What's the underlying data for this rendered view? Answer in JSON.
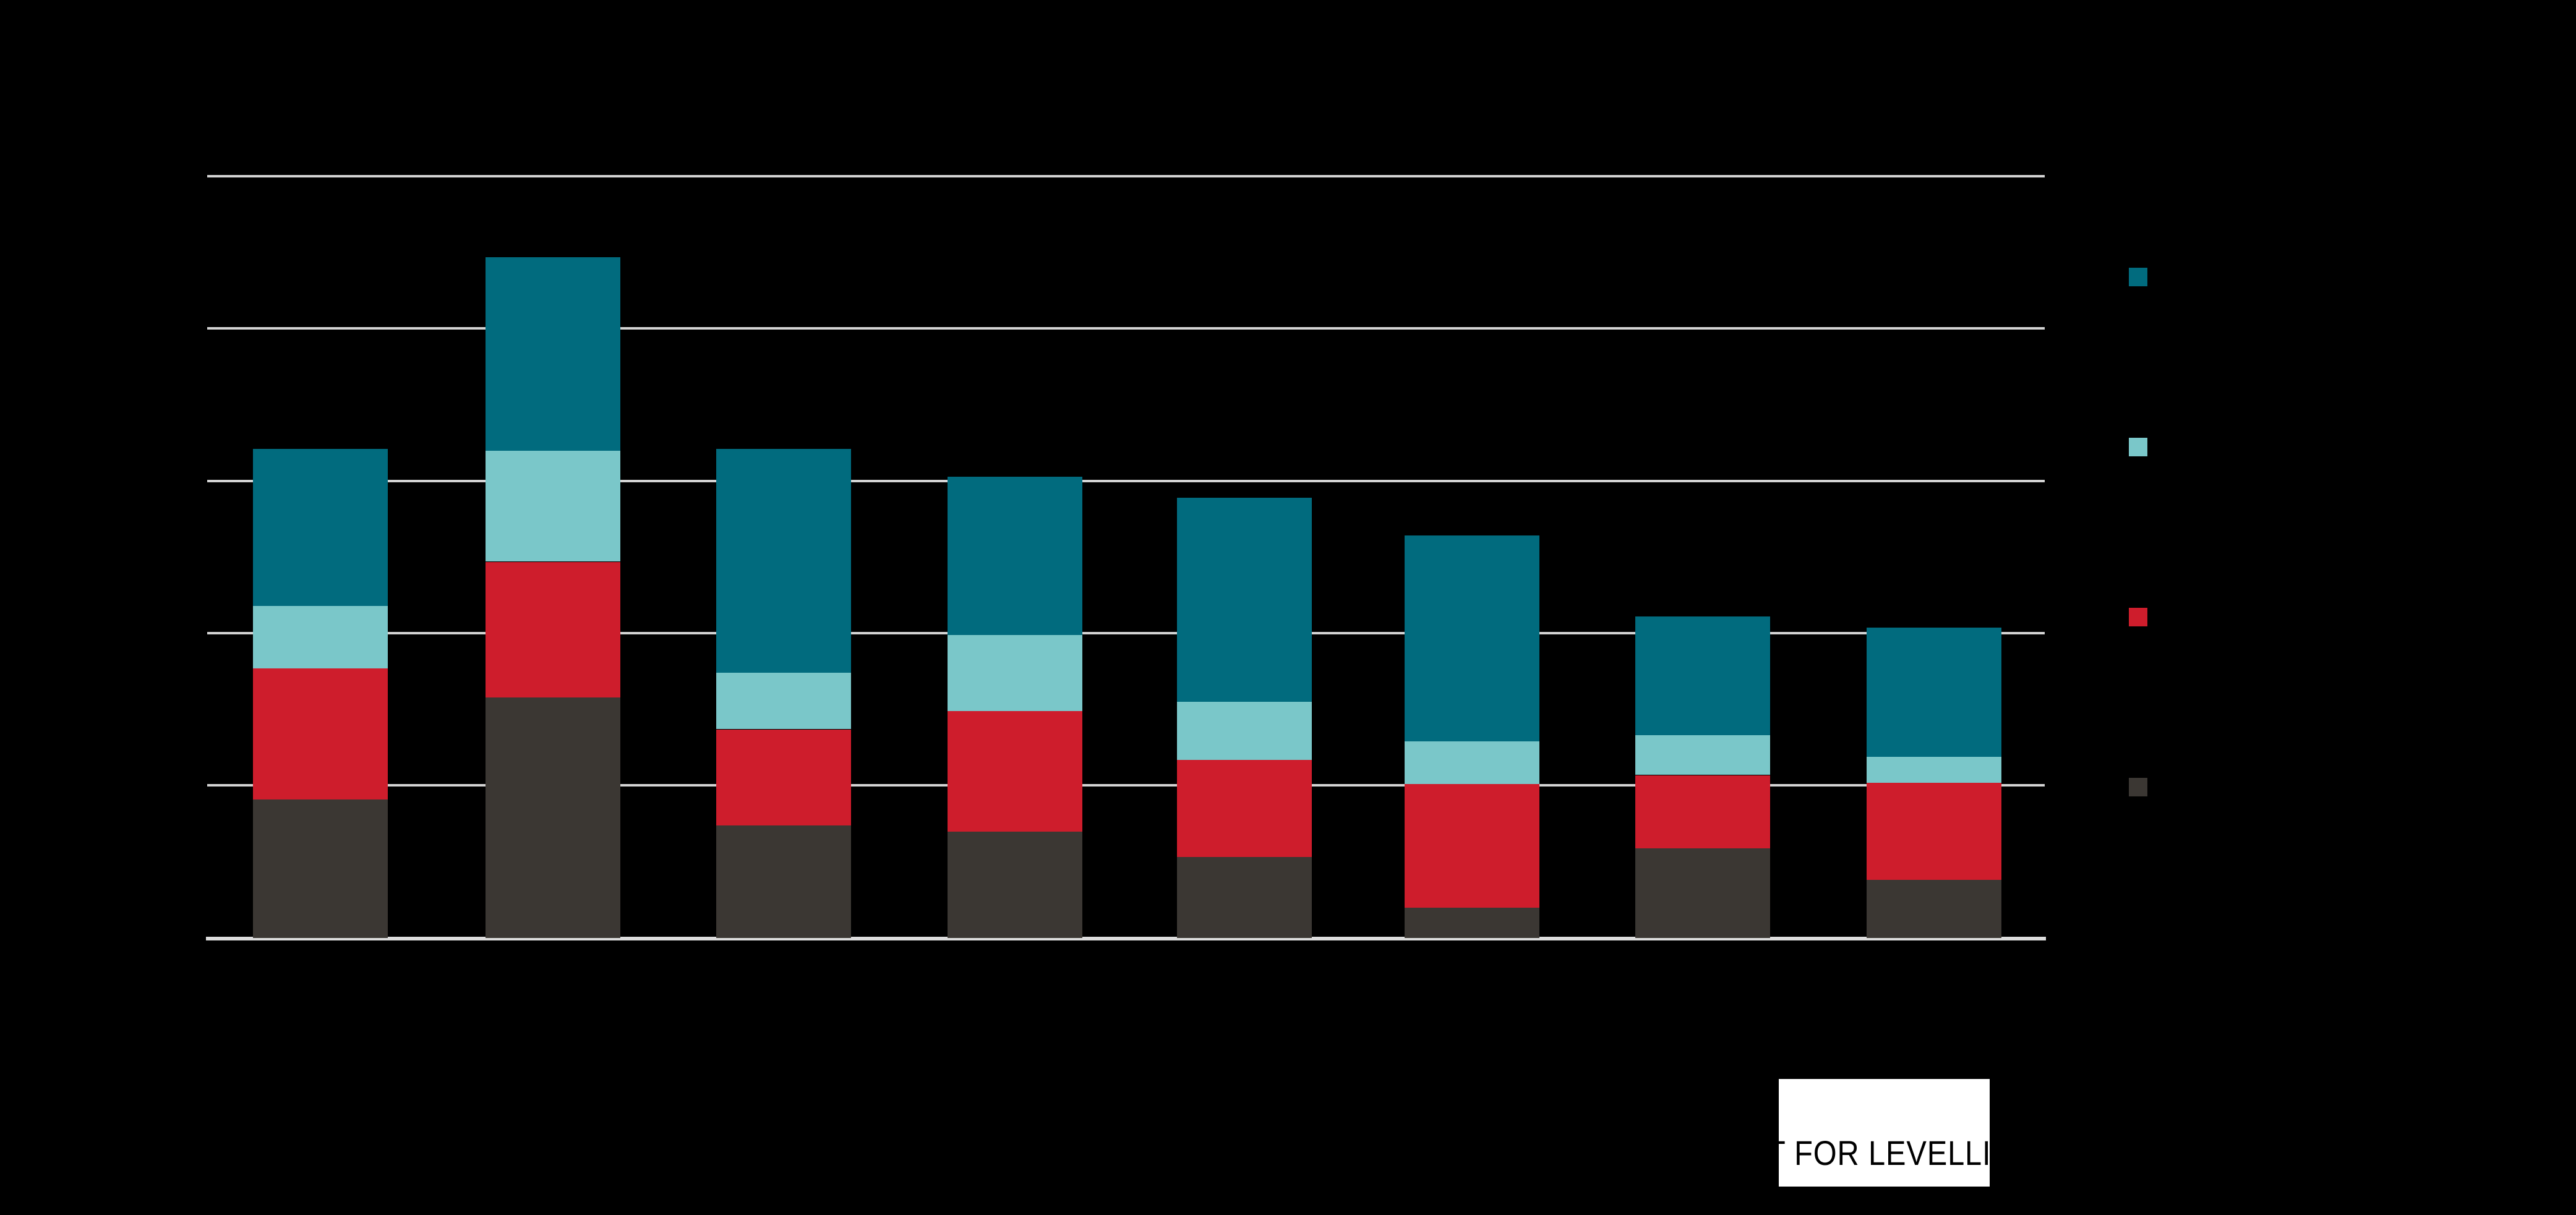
{
  "canvas": {
    "background": "#000000",
    "gridline_color": "#D4D4D4"
  },
  "chart_data": {
    "type": "bar",
    "stacked": true,
    "title": "",
    "xlabel": "",
    "ylabel": "",
    "categories": [
      "",
      "",
      "",
      "",
      "",
      "",
      "",
      ""
    ],
    "series": [
      {
        "name": "dark-grey",
        "color": "#3B3733",
        "values": [
          0.91,
          1.58,
          0.74,
          0.7,
          0.53,
          0.2,
          0.59,
          0.38
        ]
      },
      {
        "name": "red",
        "color": "#CE1D2C",
        "values": [
          0.86,
          0.89,
          0.63,
          0.79,
          0.64,
          0.81,
          0.48,
          0.64
        ]
      },
      {
        "name": "light-teal",
        "color": "#7AC7C9",
        "values": [
          0.41,
          0.73,
          0.37,
          0.5,
          0.38,
          0.28,
          0.26,
          0.17
        ]
      },
      {
        "name": "dark-teal",
        "color": "#016B7E",
        "values": [
          1.03,
          1.27,
          1.47,
          1.04,
          1.34,
          1.35,
          0.78,
          0.85
        ]
      }
    ],
    "totals": [
      3.21,
      4.47,
      3.21,
      3.03,
      2.89,
      2.65,
      2.11,
      2.04
    ],
    "value_units": "gridline-intervals",
    "ylim": [
      0,
      5
    ],
    "grid": true,
    "legend_position": "right"
  },
  "legend": {
    "swatches": [
      {
        "name": "dark-teal",
        "color": "#016B7E",
        "label": ""
      },
      {
        "name": "light-teal",
        "color": "#7AC7C9",
        "label": ""
      },
      {
        "name": "red",
        "color": "#CE1D2C",
        "label": ""
      },
      {
        "name": "dark-grey",
        "color": "#3B3733",
        "label": ""
      }
    ]
  },
  "annotation": {
    "visible_text": "T FOR LEVELLI",
    "text_color": "#000000",
    "box_color": "#FFFFFF"
  }
}
